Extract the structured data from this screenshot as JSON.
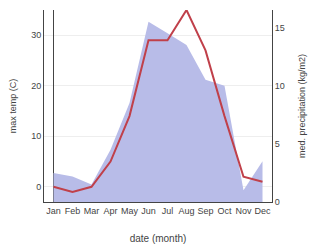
{
  "chart_data": {
    "type": "line",
    "categories": [
      "Jan",
      "Feb",
      "Mar",
      "Apr",
      "May",
      "Jun",
      "Jul",
      "Aug",
      "Sep",
      "Oct",
      "Nov",
      "Dec"
    ],
    "series": [
      {
        "type": "area",
        "axis": "y2",
        "color": "#b8bce8",
        "values": [
          2.5,
          2.2,
          1.5,
          4.5,
          8.5,
          15.5,
          14.5,
          13.5,
          10.5,
          10.0,
          1.0,
          3.5
        ]
      },
      {
        "type": "line",
        "color": "#c0404a",
        "values": [
          0.0,
          -1.0,
          0.0,
          5.0,
          14.0,
          29.0,
          29.0,
          35.0,
          27.0,
          14.0,
          2.0,
          1.0
        ]
      }
    ],
    "xlabel": "date (month)",
    "ylabel": "max temp (C)",
    "y2label": "med. precipitation (kg/m2)",
    "ylim": [
      -3,
      35
    ],
    "yticks": [
      0,
      10,
      20,
      30
    ],
    "y2lim": [
      0,
      16.5
    ],
    "y2ticks": [
      0,
      5,
      10,
      15
    ],
    "grid": true
  }
}
